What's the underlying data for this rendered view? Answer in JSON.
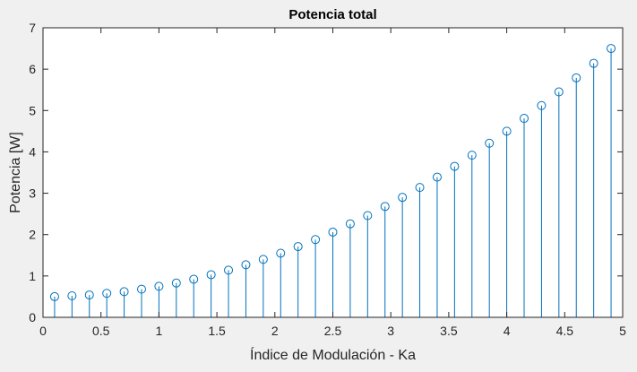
{
  "chart_data": {
    "type": "stem",
    "title": "Potencia total",
    "xlabel": "Índice de Modulación - Ka",
    "ylabel": "Potencia [W]",
    "xlim": [
      0,
      5
    ],
    "ylim": [
      0,
      7
    ],
    "xticks": [
      "0",
      "0.5",
      "1",
      "1.5",
      "2",
      "2.5",
      "3",
      "3.5",
      "4",
      "4.5",
      "5"
    ],
    "yticks": [
      "0",
      "1",
      "2",
      "3",
      "4",
      "5",
      "6",
      "7"
    ],
    "x": [
      0.1,
      0.25,
      0.4,
      0.55,
      0.7,
      0.85,
      1.0,
      1.15,
      1.3,
      1.45,
      1.6,
      1.75,
      1.9,
      2.05,
      2.2,
      2.35,
      2.5,
      2.65,
      2.8,
      2.95,
      3.1,
      3.25,
      3.4,
      3.55,
      3.7,
      3.85,
      4.0,
      4.15,
      4.3,
      4.45,
      4.6,
      4.75,
      4.9
    ],
    "values": [
      0.5,
      0.52,
      0.54,
      0.58,
      0.62,
      0.68,
      0.75,
      0.83,
      0.92,
      1.03,
      1.14,
      1.27,
      1.4,
      1.55,
      1.71,
      1.88,
      2.06,
      2.26,
      2.46,
      2.68,
      2.9,
      3.14,
      3.39,
      3.65,
      3.92,
      4.21,
      4.5,
      4.81,
      5.12,
      5.45,
      5.79,
      6.14,
      6.5
    ],
    "color": "#0072bd",
    "grid": false
  }
}
